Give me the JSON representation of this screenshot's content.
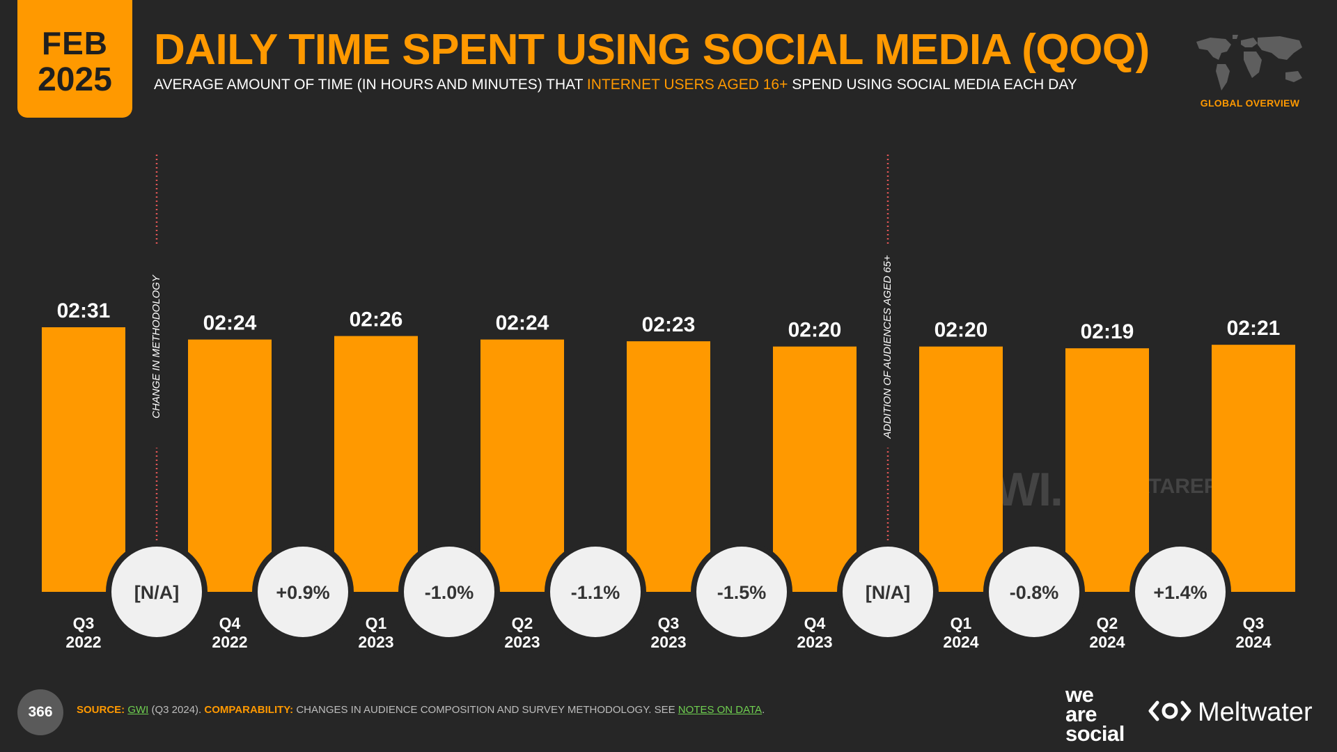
{
  "badge": {
    "month": "FEB",
    "year": "2025"
  },
  "title": "DAILY TIME SPENT USING SOCIAL MEDIA (QOQ)",
  "subtitle": {
    "before": "AVERAGE AMOUNT OF TIME (IN HOURS AND MINUTES) THAT ",
    "highlight": "INTERNET USERS AGED 16+",
    "after": " SPEND USING SOCIAL MEDIA EACH DAY"
  },
  "region_label": "GLOBAL OVERVIEW",
  "watermarks": {
    "gwi": "GWI.",
    "datareportal": "DATAREPORTAL"
  },
  "chart_data": {
    "type": "bar",
    "categories": [
      [
        "Q3",
        "2022"
      ],
      [
        "Q4",
        "2022"
      ],
      [
        "Q1",
        "2023"
      ],
      [
        "Q2",
        "2023"
      ],
      [
        "Q3",
        "2023"
      ],
      [
        "Q4",
        "2023"
      ],
      [
        "Q1",
        "2024"
      ],
      [
        "Q2",
        "2024"
      ],
      [
        "Q3",
        "2024"
      ]
    ],
    "values_minutes": [
      151,
      144,
      146,
      144,
      143,
      140,
      140,
      139,
      141
    ],
    "value_labels": [
      "02:31",
      "02:24",
      "02:26",
      "02:24",
      "02:23",
      "02:20",
      "02:20",
      "02:19",
      "02:21"
    ],
    "changes": [
      "[N/A]",
      "+0.9%",
      "-1.0%",
      "-1.1%",
      "-1.5%",
      "[N/A]",
      "-0.8%",
      "+1.4%"
    ],
    "annotations": [
      {
        "after_index": 0,
        "text": "CHANGE IN METHODOLOGY"
      },
      {
        "after_index": 5,
        "text": "ADDITION OF AUDIENCES AGED 65+"
      }
    ],
    "ylim": [
      0,
      151
    ],
    "grid": false,
    "colors": {
      "bar": "#ff9900",
      "circle": "#f0f0f0",
      "circle_text": "#333333",
      "divider": "#e05555"
    }
  },
  "footer": {
    "page_number": "366",
    "source_label": "SOURCE:",
    "source_link": "GWI",
    "source_rest": " (Q3 2024). ",
    "comparability_label": "COMPARABILITY:",
    "comparability_text": " CHANGES IN AUDIENCE COMPOSITION AND SURVEY METHODOLOGY. SEE ",
    "notes_link": "NOTES ON DATA",
    "end": "."
  },
  "brands": {
    "was_line1": "we",
    "was_line2": "are",
    "was_line3": "social",
    "meltwater": "Meltwater"
  }
}
